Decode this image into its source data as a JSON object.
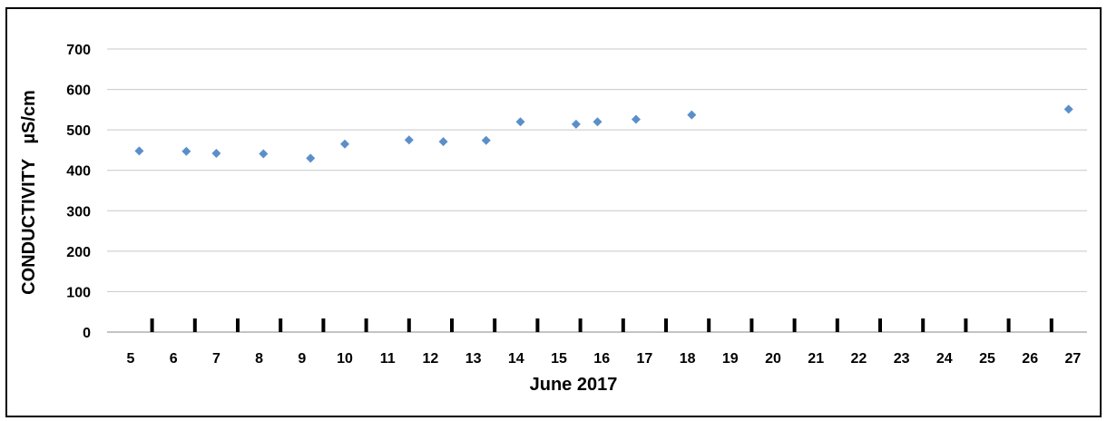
{
  "chart_data": {
    "type": "scatter",
    "xlabel": "June 2017",
    "ylabel": "CONDUCTIVITY   µS/cm",
    "ylim": [
      0,
      700
    ],
    "yticks": [
      "0",
      "100",
      "200",
      "300",
      "400",
      "500",
      "600",
      "700"
    ],
    "xticks": [
      "5",
      "6",
      "7",
      "8",
      "9",
      "10",
      "11",
      "12",
      "13",
      "14",
      "15",
      "16",
      "17",
      "18",
      "19",
      "20",
      "21",
      "22",
      "23",
      "24",
      "25",
      "26",
      "27"
    ],
    "grid": "horizontal",
    "marker_color": "#5b8fc9",
    "points": [
      {
        "x": 5.2,
        "y": 448
      },
      {
        "x": 6.3,
        "y": 447
      },
      {
        "x": 7.0,
        "y": 442
      },
      {
        "x": 8.1,
        "y": 441
      },
      {
        "x": 9.2,
        "y": 430
      },
      {
        "x": 10.0,
        "y": 465
      },
      {
        "x": 11.5,
        "y": 475
      },
      {
        "x": 12.3,
        "y": 471
      },
      {
        "x": 13.3,
        "y": 474
      },
      {
        "x": 14.1,
        "y": 520
      },
      {
        "x": 15.4,
        "y": 514
      },
      {
        "x": 15.9,
        "y": 520
      },
      {
        "x": 16.8,
        "y": 526
      },
      {
        "x": 18.1,
        "y": 537
      },
      {
        "x": 26.9,
        "y": 551
      }
    ]
  }
}
